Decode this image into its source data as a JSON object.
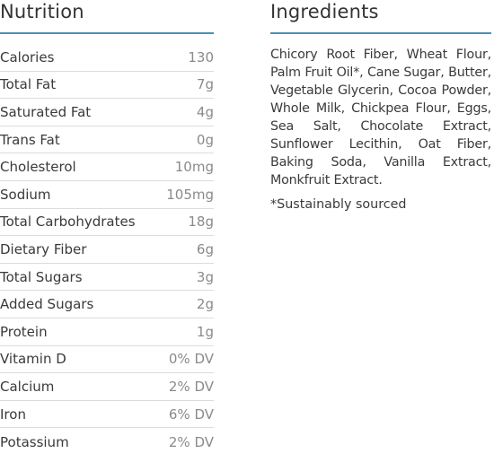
{
  "nutrition": {
    "title": "Nutrition",
    "rows": [
      {
        "name": "Calories",
        "value": "130"
      },
      {
        "name": "Total Fat",
        "value": "7g"
      },
      {
        "name": "Saturated Fat",
        "value": "4g"
      },
      {
        "name": "Trans Fat",
        "value": "0g"
      },
      {
        "name": "Cholesterol",
        "value": "10mg"
      },
      {
        "name": "Sodium",
        "value": "105mg"
      },
      {
        "name": "Total Carbohydrates",
        "value": "18g"
      },
      {
        "name": "Dietary Fiber",
        "value": "6g"
      },
      {
        "name": "Total Sugars",
        "value": "3g"
      },
      {
        "name": "Added Sugars",
        "value": "2g"
      },
      {
        "name": "Protein",
        "value": "1g"
      },
      {
        "name": "Vitamin D",
        "value": "0% DV"
      },
      {
        "name": "Calcium",
        "value": "2% DV"
      },
      {
        "name": "Iron",
        "value": "6% DV"
      },
      {
        "name": "Potassium",
        "value": "2% DV"
      }
    ]
  },
  "ingredients": {
    "title": "Ingredients",
    "text": "Chicory Root Fiber, Wheat Flour, Palm Fruit Oil*, Cane Sugar, Butter, Vegetable Glycerin, Cocoa Powder, Whole Milk, Chickpea Flour, Eggs, Sea Salt, Chocolate Extract, Sunflower Lecithin, Oat Fiber, Baking Soda, Vanilla Extract, Monkfruit Extract.",
    "note": "*Sustainably sourced"
  },
  "colors": {
    "accent_rule": "#4a90b8",
    "row_divider": "#dcdcdc",
    "value_text": "#8a8a8a"
  }
}
